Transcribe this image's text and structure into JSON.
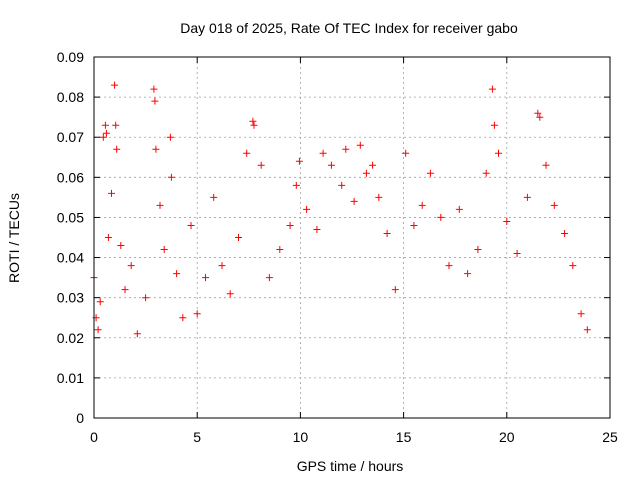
{
  "chart_data": {
    "type": "scatter",
    "title": "Day 018 of 2025, Rate Of TEC Index for receiver gabo",
    "xlabel": "GPS time / hours",
    "ylabel": "ROTI / TECUs",
    "xlim": [
      0,
      25
    ],
    "ylim": [
      0,
      0.09
    ],
    "xticks": [
      "0",
      "5",
      "10",
      "15",
      "20",
      "25"
    ],
    "yticks": [
      "0",
      "0.01",
      "0.02",
      "0.03",
      "0.04",
      "0.05",
      "0.06",
      "0.07",
      "0.08",
      "0.09"
    ],
    "grid": true,
    "marker": "+",
    "series_color": "#ff0000",
    "series": [
      {
        "x": [
          0.0,
          0.1,
          0.2,
          0.3,
          0.45,
          0.55,
          0.6,
          0.7,
          0.85,
          1.0,
          1.05,
          1.1,
          1.3,
          1.5,
          1.8,
          2.1,
          2.5,
          2.9,
          2.95,
          3.0,
          3.2,
          3.4,
          3.7,
          3.75,
          4.0,
          4.3,
          4.7,
          5.0,
          5.4,
          5.8,
          6.2,
          6.6,
          7.0,
          7.4,
          7.7,
          7.75,
          8.1,
          8.5,
          9.0,
          9.5,
          9.8,
          9.95,
          10.3,
          10.8,
          11.1,
          11.5,
          12.0,
          12.2,
          12.6,
          12.9,
          13.2,
          13.5,
          13.8,
          14.2,
          14.6,
          15.1,
          15.5,
          15.9,
          16.3,
          16.8,
          17.2,
          17.7,
          18.1,
          18.6,
          19.0,
          19.3,
          19.4,
          19.6,
          20.0,
          20.5,
          21.0,
          21.5,
          21.6,
          21.9,
          22.3,
          22.8,
          23.2,
          23.6,
          23.9
        ],
        "y": [
          0.035,
          0.025,
          0.022,
          0.029,
          0.07,
          0.073,
          0.071,
          0.045,
          0.056,
          0.083,
          0.073,
          0.067,
          0.043,
          0.032,
          0.038,
          0.021,
          0.03,
          0.082,
          0.079,
          0.067,
          0.053,
          0.042,
          0.07,
          0.06,
          0.036,
          0.025,
          0.048,
          0.026,
          0.035,
          0.055,
          0.038,
          0.031,
          0.045,
          0.066,
          0.074,
          0.073,
          0.063,
          0.035,
          0.042,
          0.048,
          0.058,
          0.064,
          0.052,
          0.047,
          0.066,
          0.063,
          0.058,
          0.067,
          0.054,
          0.068,
          0.061,
          0.063,
          0.055,
          0.046,
          0.032,
          0.066,
          0.048,
          0.053,
          0.061,
          0.05,
          0.038,
          0.052,
          0.036,
          0.042,
          0.061,
          0.082,
          0.073,
          0.066,
          0.049,
          0.041,
          0.055,
          0.076,
          0.075,
          0.063,
          0.053,
          0.046,
          0.038,
          0.026,
          0.022
        ]
      }
    ]
  }
}
